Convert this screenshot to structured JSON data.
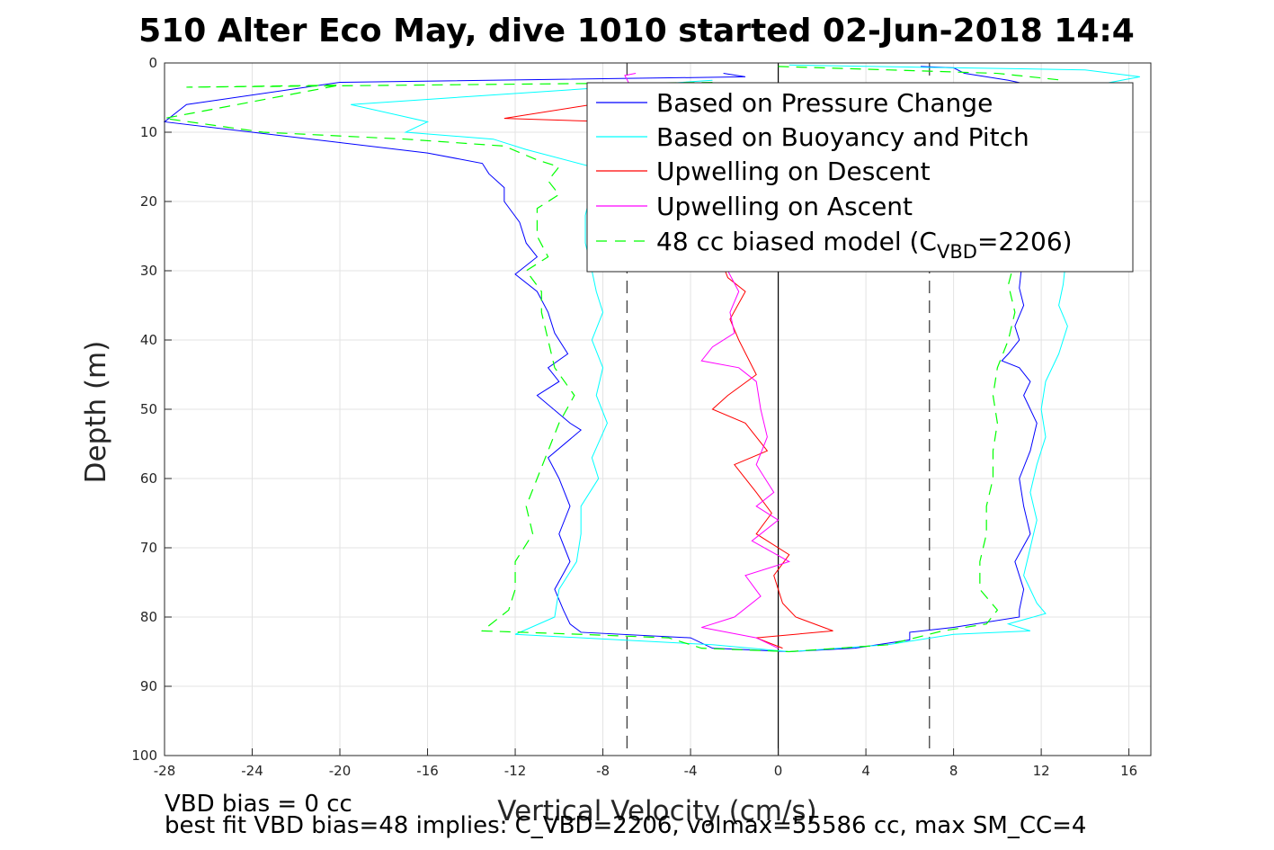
{
  "chart_data": {
    "type": "line",
    "title": "510 Alter Eco May, dive 1010 started 02-Jun-2018 14:4",
    "xlabel": "Vertical Velocity (cm/s)",
    "ylabel": "Depth (m)",
    "xlim": [
      -28,
      17
    ],
    "ylim": [
      0,
      100
    ],
    "y_reversed": true,
    "grid": true,
    "legend_position": "top-right",
    "xticks": [
      -28,
      -24,
      -20,
      -16,
      -12,
      -8,
      -4,
      0,
      4,
      8,
      12,
      16
    ],
    "yticks": [
      0,
      10,
      20,
      30,
      40,
      50,
      60,
      70,
      80,
      90,
      100
    ],
    "reference_lines": [
      {
        "x": -6.9,
        "style": "dashed",
        "color": "#333333"
      },
      {
        "x": 0,
        "style": "solid",
        "color": "#000000"
      },
      {
        "x": 6.9,
        "style": "dashed",
        "color": "#333333"
      }
    ],
    "series": [
      {
        "name": "Based on Pressure Change",
        "color": "#0000ff",
        "style": "solid",
        "descent": [
          [
            -2.5,
            1.5
          ],
          [
            -1.5,
            2
          ],
          [
            -20,
            2.8
          ],
          [
            -27,
            6
          ],
          [
            -28,
            8.5
          ],
          [
            -24,
            10
          ],
          [
            -20,
            11.5
          ],
          [
            -16,
            13
          ],
          [
            -13.5,
            14.5
          ],
          [
            -13.2,
            16
          ],
          [
            -12.5,
            18
          ],
          [
            -12.5,
            20
          ],
          [
            -11.8,
            23
          ],
          [
            -11.5,
            26
          ],
          [
            -11,
            28
          ],
          [
            -12,
            30.5
          ],
          [
            -11,
            33
          ],
          [
            -10.5,
            36
          ],
          [
            -10.2,
            39
          ],
          [
            -9.6,
            42
          ],
          [
            -10.5,
            44
          ],
          [
            -10,
            46
          ],
          [
            -11,
            48
          ],
          [
            -9.5,
            52
          ],
          [
            -9,
            53
          ],
          [
            -10.5,
            57
          ],
          [
            -10,
            60
          ],
          [
            -9.5,
            64
          ],
          [
            -10,
            68
          ],
          [
            -9.5,
            72
          ],
          [
            -10.2,
            76
          ],
          [
            -9.8,
            79
          ],
          [
            -9.5,
            81
          ],
          [
            -9,
            82.2
          ],
          [
            -4,
            83
          ],
          [
            -3,
            84.5
          ],
          [
            0.5,
            85
          ]
        ],
        "ascent": [
          [
            6.5,
            0.5
          ],
          [
            8,
            0.7
          ],
          [
            8.5,
            1.5
          ],
          [
            10.5,
            2.5
          ],
          [
            12,
            3.5
          ],
          [
            11,
            32.5
          ],
          [
            11.2,
            35
          ],
          [
            10.8,
            38
          ],
          [
            11,
            40
          ],
          [
            10.5,
            42
          ],
          [
            10.2,
            43
          ],
          [
            11,
            44
          ],
          [
            11.5,
            46
          ],
          [
            11.2,
            48
          ],
          [
            11.8,
            52
          ],
          [
            11.5,
            56
          ],
          [
            11,
            60
          ],
          [
            11.2,
            64
          ],
          [
            11.5,
            68
          ],
          [
            10.8,
            72
          ],
          [
            11.2,
            76
          ],
          [
            11,
            79
          ],
          [
            11,
            80
          ],
          [
            8,
            81.5
          ],
          [
            6,
            82.2
          ],
          [
            6,
            83.3
          ],
          [
            3.5,
            84.5
          ],
          [
            0.5,
            85
          ]
        ]
      },
      {
        "name": "Based on Buoyancy and Pitch",
        "color": "#00ffff",
        "style": "solid",
        "descent": [
          [
            -3,
            2.5
          ],
          [
            -19.5,
            6
          ],
          [
            -16,
            8.5
          ],
          [
            -17,
            10
          ],
          [
            -13,
            11
          ],
          [
            -11.5,
            12.5
          ],
          [
            -8.5,
            15
          ],
          [
            -8.5,
            18
          ],
          [
            -8.8,
            22
          ],
          [
            -8.8,
            26
          ],
          [
            -8.5,
            30
          ],
          [
            -8.3,
            33
          ],
          [
            -8,
            36
          ],
          [
            -8.5,
            40
          ],
          [
            -8,
            44
          ],
          [
            -8.3,
            48
          ],
          [
            -7.8,
            52
          ],
          [
            -8.5,
            57
          ],
          [
            -8.2,
            60
          ],
          [
            -9,
            64
          ],
          [
            -9,
            68
          ],
          [
            -9.2,
            72
          ],
          [
            -10,
            76
          ],
          [
            -10.2,
            80
          ],
          [
            -12,
            82.5
          ],
          [
            -3,
            84
          ],
          [
            0.5,
            85
          ]
        ],
        "ascent": [
          [
            0.5,
            0.3
          ],
          [
            14,
            1
          ],
          [
            16.5,
            2
          ],
          [
            14,
            3.5
          ],
          [
            13,
            32
          ],
          [
            12.8,
            35
          ],
          [
            13.2,
            38
          ],
          [
            12.8,
            42
          ],
          [
            12.2,
            46
          ],
          [
            12,
            50
          ],
          [
            12.2,
            54
          ],
          [
            11.8,
            58
          ],
          [
            11.5,
            62
          ],
          [
            11.8,
            66
          ],
          [
            11.5,
            70
          ],
          [
            11.2,
            74
          ],
          [
            11.8,
            78
          ],
          [
            12.2,
            79.5
          ],
          [
            10.5,
            81
          ],
          [
            11.5,
            82
          ],
          [
            8,
            82.5
          ],
          [
            5,
            84
          ],
          [
            0.5,
            85
          ]
        ]
      },
      {
        "name": "Upwelling on Descent",
        "color": "#ff0000",
        "style": "solid",
        "descent": [
          [
            -8.5,
            6
          ],
          [
            -12.5,
            8
          ],
          [
            -7.5,
            8.5
          ],
          [
            -5,
            9
          ],
          [
            -2.3,
            31
          ],
          [
            -1.5,
            33
          ],
          [
            -2.2,
            37
          ],
          [
            -1.8,
            40
          ],
          [
            -1,
            45
          ],
          [
            -2.3,
            48
          ],
          [
            -3,
            50
          ],
          [
            -1.5,
            52
          ],
          [
            -0.5,
            56
          ],
          [
            -2,
            58
          ],
          [
            -1,
            62
          ],
          [
            -0.3,
            65
          ],
          [
            -1,
            68
          ],
          [
            0.5,
            71
          ],
          [
            -0.2,
            74
          ],
          [
            0.2,
            78
          ],
          [
            0.8,
            80
          ],
          [
            2.5,
            82
          ],
          [
            -1,
            83
          ],
          [
            0.2,
            84.5
          ]
        ],
        "ascent": []
      },
      {
        "name": "Upwelling on Ascent",
        "color": "#ff00ff",
        "style": "solid",
        "descent": [
          [
            -6.5,
            1.5
          ],
          [
            -7,
            1.8
          ],
          [
            -1.8,
            33
          ],
          [
            -2.2,
            36
          ],
          [
            -2,
            39
          ],
          [
            -3,
            41
          ],
          [
            -3.5,
            43
          ],
          [
            -1.8,
            44
          ],
          [
            -1,
            46
          ],
          [
            -0.8,
            50
          ],
          [
            -0.5,
            54
          ],
          [
            -1,
            58
          ],
          [
            -0.2,
            62
          ],
          [
            -1,
            64
          ],
          [
            0,
            66
          ],
          [
            -1.2,
            69
          ],
          [
            0.5,
            72
          ],
          [
            -1.5,
            74
          ],
          [
            -0.8,
            77
          ],
          [
            -2,
            80
          ],
          [
            -3.5,
            81.5
          ],
          [
            -1,
            83
          ],
          [
            0,
            84.5
          ]
        ],
        "ascent": []
      },
      {
        "name": "48 cc biased model (C_VBD=2206)",
        "color": "#00ff00",
        "style": "dashed",
        "descent": [
          [
            -3,
            2.8
          ],
          [
            -27,
            3.5
          ],
          [
            -20,
            3.2
          ],
          [
            -28,
            8
          ],
          [
            -23.5,
            10
          ],
          [
            -17,
            11
          ],
          [
            -12.5,
            12
          ],
          [
            -11,
            14
          ],
          [
            -10,
            15
          ],
          [
            -10.5,
            17
          ],
          [
            -10,
            19
          ],
          [
            -11,
            21
          ],
          [
            -11,
            25
          ],
          [
            -10.5,
            28
          ],
          [
            -11.5,
            30
          ],
          [
            -10.8,
            33
          ],
          [
            -10.8,
            36
          ],
          [
            -10.5,
            40
          ],
          [
            -10.2,
            44
          ],
          [
            -9.3,
            48
          ],
          [
            -10,
            52
          ],
          [
            -10.5,
            56
          ],
          [
            -11,
            60
          ],
          [
            -11.5,
            64
          ],
          [
            -11.2,
            68
          ],
          [
            -12,
            72
          ],
          [
            -12,
            76
          ],
          [
            -12.3,
            79
          ],
          [
            -13.5,
            82
          ],
          [
            -9,
            82.5
          ],
          [
            -5,
            83
          ],
          [
            -3.5,
            84.5
          ],
          [
            0.5,
            85
          ]
        ],
        "ascent": [
          [
            0,
            0.5
          ],
          [
            5,
            1
          ],
          [
            10,
            1.5
          ],
          [
            13,
            2.5
          ],
          [
            10.5,
            32
          ],
          [
            10.8,
            36
          ],
          [
            10.5,
            40
          ],
          [
            10,
            44
          ],
          [
            9.8,
            48
          ],
          [
            10,
            52
          ],
          [
            9.8,
            56
          ],
          [
            9.8,
            60
          ],
          [
            9.5,
            64
          ],
          [
            9.5,
            68
          ],
          [
            9.2,
            72
          ],
          [
            9.2,
            76
          ],
          [
            10,
            79
          ],
          [
            9.5,
            81
          ],
          [
            7.5,
            82
          ],
          [
            5,
            84
          ],
          [
            0.5,
            85
          ]
        ]
      }
    ],
    "legend_entries": [
      "Based on Pressure Change",
      "Based on Buoyancy and Pitch",
      "Upwelling on Descent",
      "Upwelling on Ascent"
    ],
    "legend_last_prefix": "48 cc biased model (C",
    "legend_last_sub": "VBD",
    "legend_last_suffix": "=2206)",
    "footnotes": [
      "VBD bias = 0 cc",
      "best fit VBD bias=48 implies: C_VBD=2206, volmax=55586 cc, max SM_CC=4"
    ]
  }
}
